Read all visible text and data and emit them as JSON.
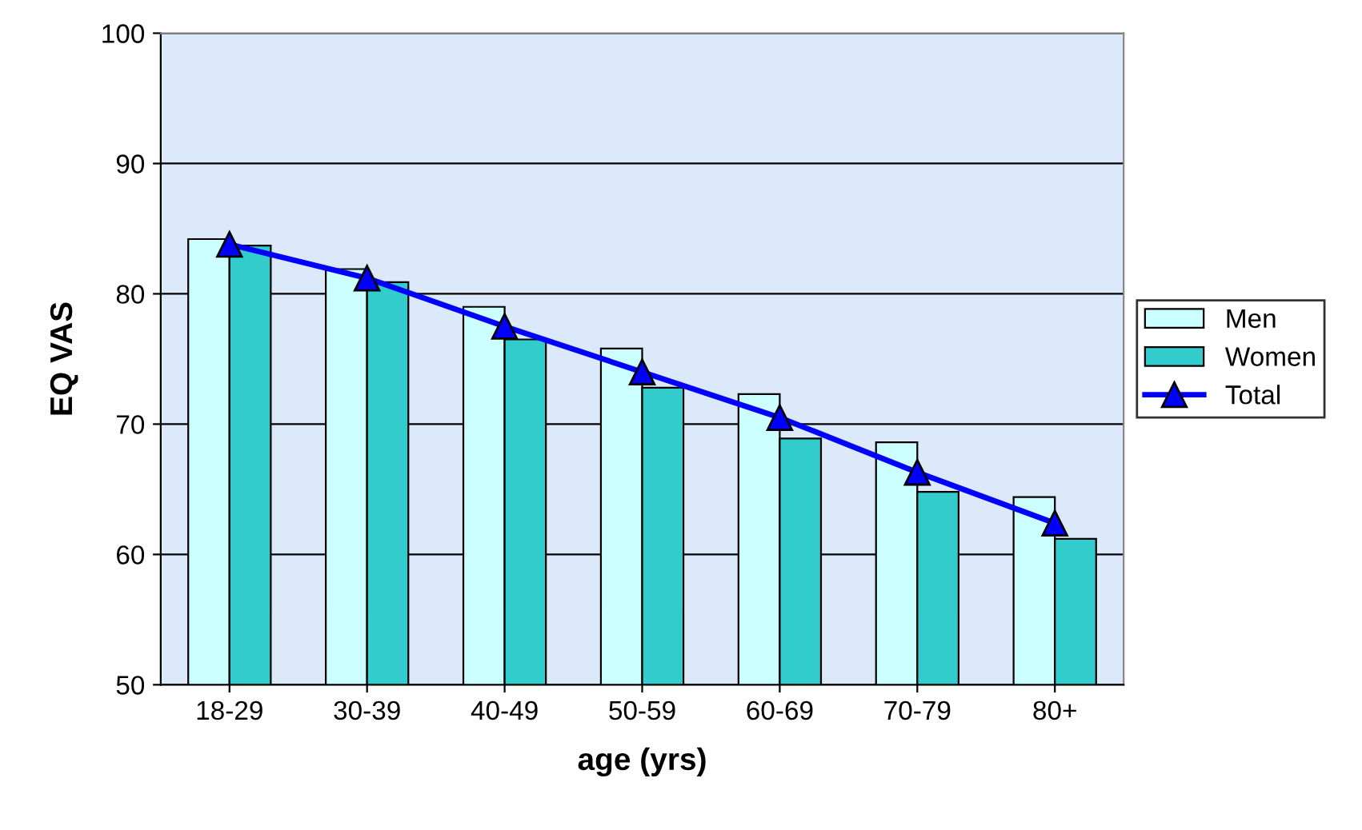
{
  "chart_data": {
    "type": "bar",
    "xlabel": "age (yrs)",
    "ylabel": "EQ VAS",
    "categories": [
      "18-29",
      "30-39",
      "40-49",
      "50-59",
      "60-69",
      "70-79",
      "80+"
    ],
    "series": [
      {
        "name": "Men",
        "color": "#ccffff",
        "values": [
          84.2,
          81.9,
          79.0,
          75.8,
          72.3,
          68.6,
          64.4
        ]
      },
      {
        "name": "Women",
        "color": "#33cccc",
        "values": [
          83.7,
          80.9,
          76.5,
          72.8,
          68.9,
          64.8,
          61.2
        ]
      },
      {
        "name": "Total",
        "type": "line",
        "color": "#0000ff",
        "marker": "triangle",
        "values": [
          83.8,
          81.2,
          77.5,
          74.0,
          70.5,
          66.3,
          62.4
        ]
      }
    ],
    "ylim": [
      50,
      100
    ],
    "yticks": [
      50,
      60,
      70,
      80,
      90,
      100
    ],
    "grid": "y",
    "legend": "right"
  }
}
